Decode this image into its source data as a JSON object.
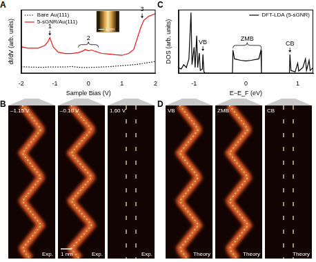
{
  "chart_data": [
    {
      "label": "A",
      "type": "line",
      "x_label": "Sample Bias (V)",
      "y_label": "dI/dV (arb. units)",
      "x": [
        -2,
        -1.8,
        -1.5,
        -1.3,
        -1.2,
        -1.15,
        -1.05,
        -0.9,
        -0.7,
        -0.5,
        -0.3,
        -0.15,
        -0.1,
        0,
        0.1,
        0.2,
        0.4,
        0.6,
        0.8,
        1.0,
        1.2,
        1.35,
        1.45,
        1.55,
        1.65,
        1.8,
        2.0
      ],
      "series": [
        {
          "name": "Bare Au(111)",
          "color": "#000000",
          "line_style": "dotted",
          "values": [
            2.5,
            2.4,
            2.3,
            2.3,
            2.4,
            2.4,
            2.4,
            2.4,
            2.4,
            2.6,
            2.3,
            2.2,
            2.2,
            2.2,
            2.3,
            2.3,
            2.4,
            2.5,
            2.7,
            2.9,
            3.1,
            3.3,
            3.4,
            3.6,
            3.8,
            4.1,
            4.5
          ]
        },
        {
          "name": "5-sGNR/Au(111)",
          "color": "#e8151b",
          "line_style": "solid",
          "values": [
            10,
            9.5,
            9.5,
            10.5,
            12,
            13.5,
            10,
            8,
            7.5,
            7.5,
            7.8,
            8.5,
            9,
            8.5,
            8.8,
            8.3,
            7.5,
            7.3,
            7,
            6.8,
            7.5,
            9,
            13,
            17,
            20,
            21.5,
            22.5
          ]
        }
      ],
      "xlim": [
        -2,
        2
      ],
      "xticks": [
        -2,
        -1,
        0,
        1,
        2
      ],
      "ylim": [
        0,
        24
      ],
      "tick_labels": "x",
      "grid": false,
      "legend": "upper left",
      "annotations": [
        {
          "text": "1",
          "x": -1.15
        },
        {
          "text": "2",
          "x": [
            -0.3,
            0.3
          ]
        },
        {
          "text": "3",
          "x": 1.6
        }
      ],
      "inset_scale": "1 nm"
    },
    {
      "label": "C",
      "type": "line",
      "x_label": "E−E_F (eV)",
      "y_label": "DOS (arb. units)",
      "x": [
        -1.3,
        -1.25,
        -1.2,
        -1.15,
        -1.1,
        -1.06,
        -1.04,
        -1.0,
        -0.98,
        -0.95,
        -0.93,
        -0.9,
        -0.88,
        -0.84,
        -0.83,
        -0.81,
        -0.78,
        -0.3,
        -0.26,
        -0.25,
        -0.22,
        -0.1,
        0,
        0.1,
        0.25,
        0.29,
        0.3,
        0.84,
        0.85,
        0.87,
        0.95,
        1.0,
        1.02,
        1.1,
        1.15,
        1.17,
        1.22,
        1.24,
        1.3
      ],
      "series": [
        {
          "name": "DFT-LDA (5-sGNR)",
          "color": "#000000",
          "line_style": "solid",
          "values": [
            2,
            1.5,
            3,
            2,
            5,
            21,
            3,
            9,
            2,
            13,
            2,
            7,
            1,
            1.5,
            6.5,
            0.5,
            0,
            0,
            0,
            8,
            5,
            4.5,
            4.3,
            4.5,
            5,
            8,
            0,
            0,
            6.5,
            1,
            0.5,
            3.5,
            0.8,
            2,
            5,
            1,
            4.5,
            1,
            2
          ]
        }
      ],
      "xlim": [
        -1.3,
        1.3
      ],
      "xticks": [
        -1,
        0,
        1
      ],
      "ylim": [
        0,
        22
      ],
      "tick_labels": "x",
      "grid": false,
      "legend": "upper right",
      "annotations": [
        {
          "text": "VB",
          "x": -0.83
        },
        {
          "text": "ZMB",
          "x": [
            -0.25,
            0.3
          ]
        },
        {
          "text": "CB",
          "x": 0.85
        }
      ]
    }
  ],
  "images": [
    {
      "label": "B",
      "panels": [
        {
          "title": "–1.15 V",
          "tag": "Exp."
        },
        {
          "title": "–0.10 V",
          "tag": "Exp.",
          "scale_bar": "1 nm"
        },
        {
          "title": "1.60 V",
          "tag": "Exp."
        }
      ]
    },
    {
      "label": "D",
      "panels": [
        {
          "title": "VB",
          "tag": "Theory"
        },
        {
          "title": "ZMB",
          "tag": "Theory"
        },
        {
          "title": "CB",
          "tag": "Theory"
        }
      ]
    }
  ]
}
